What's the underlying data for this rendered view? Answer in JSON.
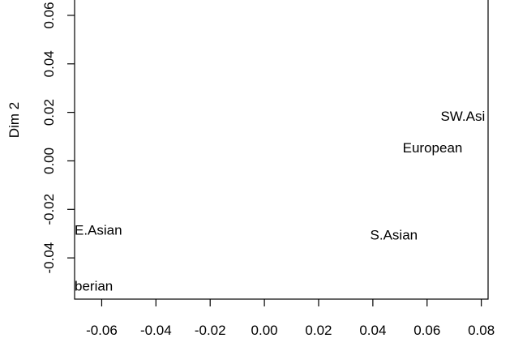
{
  "chart_data": {
    "type": "scatter",
    "title": "",
    "xlabel": "",
    "ylabel": "Dim 2",
    "xlim": [
      -0.07,
      0.0825
    ],
    "ylim": [
      -0.057,
      0.067
    ],
    "x_ticks": [
      -0.06,
      -0.04,
      -0.02,
      0.0,
      0.02,
      0.04,
      0.06,
      0.08
    ],
    "x_tick_labels": [
      "-0.06",
      "-0.04",
      "-0.02",
      "0.00",
      "0.02",
      "0.04",
      "0.06",
      "0.08"
    ],
    "y_ticks": [
      -0.04,
      -0.02,
      0.0,
      0.02,
      0.04,
      0.06
    ],
    "y_tick_labels": [
      "-0.04",
      "-0.02",
      "0.00",
      "0.02",
      "0.04",
      "0.06"
    ],
    "grid": false,
    "points": [
      {
        "label": "SW.Asi",
        "x": 0.065,
        "y": 0.018
      },
      {
        "label": "European",
        "x": 0.051,
        "y": 0.005
      },
      {
        "label": "E.Asian",
        "x": -0.07,
        "y": -0.029
      },
      {
        "label": "S.Asian",
        "x": 0.039,
        "y": -0.031
      },
      {
        "label": "berian",
        "x": -0.07,
        "y": -0.052
      }
    ]
  }
}
